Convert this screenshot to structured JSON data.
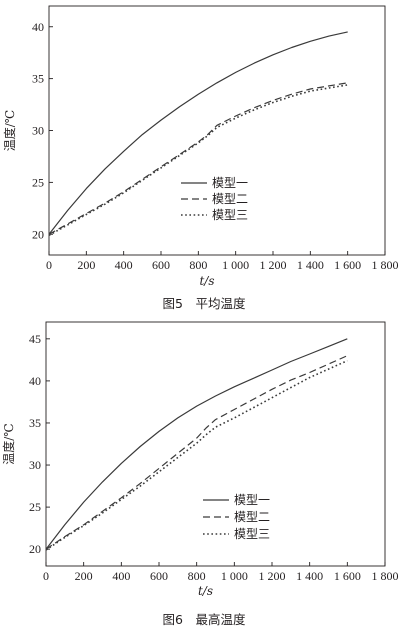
{
  "chart_data": [
    {
      "type": "line",
      "caption": "图5　平均温度",
      "xlabel": "t/s",
      "ylabel": "温度/℃",
      "xlim": [
        0,
        1800
      ],
      "ylim": [
        18,
        42
      ],
      "xticks": [
        0,
        200,
        400,
        600,
        800,
        1000,
        1200,
        1400,
        1600,
        1800
      ],
      "xtick_labels": [
        "0",
        "200",
        "400",
        "600",
        "800",
        "1 000",
        "1 200",
        "1 400",
        "1 600",
        "1 800"
      ],
      "yticks": [
        20,
        25,
        30,
        35,
        40
      ],
      "ytick_labels": [
        "20",
        "25",
        "30",
        "35",
        "40"
      ],
      "grid": false,
      "legend_position": "lower-right",
      "series": [
        {
          "name": "模型一",
          "style": "solid",
          "x": [
            0,
            100,
            200,
            300,
            400,
            500,
            600,
            700,
            800,
            900,
            1000,
            1100,
            1200,
            1300,
            1400,
            1500,
            1600
          ],
          "y": [
            20.0,
            22.3,
            24.4,
            26.3,
            28.0,
            29.6,
            31.0,
            32.3,
            33.5,
            34.6,
            35.6,
            36.5,
            37.3,
            38.0,
            38.6,
            39.1,
            39.5
          ]
        },
        {
          "name": "模型二",
          "style": "dashed",
          "x": [
            0,
            100,
            200,
            300,
            400,
            500,
            600,
            700,
            800,
            850,
            900,
            1000,
            1100,
            1200,
            1300,
            1400,
            1500,
            1600
          ],
          "y": [
            20.0,
            21.0,
            22.0,
            23.0,
            24.1,
            25.3,
            26.5,
            27.7,
            28.9,
            29.6,
            30.5,
            31.4,
            32.2,
            32.9,
            33.5,
            34.0,
            34.3,
            34.6
          ]
        },
        {
          "name": "模型三",
          "style": "dotted",
          "x": [
            0,
            100,
            200,
            300,
            400,
            500,
            600,
            700,
            800,
            850,
            900,
            1000,
            1100,
            1200,
            1300,
            1400,
            1500,
            1600
          ],
          "y": [
            19.9,
            20.9,
            21.9,
            22.9,
            24.0,
            25.2,
            26.4,
            27.6,
            28.8,
            29.5,
            30.3,
            31.2,
            32.0,
            32.7,
            33.3,
            33.8,
            34.1,
            34.4
          ]
        }
      ]
    },
    {
      "type": "line",
      "caption": "图6　最高温度",
      "xlabel": "t/s",
      "ylabel": "温度/℃",
      "xlim": [
        0,
        1800
      ],
      "ylim": [
        18,
        47
      ],
      "xticks": [
        0,
        200,
        400,
        600,
        800,
        1000,
        1200,
        1400,
        1600,
        1800
      ],
      "xtick_labels": [
        "0",
        "200",
        "400",
        "600",
        "800",
        "1 000",
        "1 200",
        "1 400",
        "1 600",
        "1 800"
      ],
      "yticks": [
        20,
        25,
        30,
        35,
        40,
        45
      ],
      "ytick_labels": [
        "20",
        "25",
        "30",
        "35",
        "40",
        "45"
      ],
      "grid": false,
      "legend_position": "lower-right",
      "series": [
        {
          "name": "模型一",
          "style": "solid",
          "x": [
            0,
            100,
            200,
            300,
            400,
            500,
            600,
            700,
            800,
            900,
            1000,
            1100,
            1200,
            1300,
            1400,
            1500,
            1600
          ],
          "y": [
            20.0,
            22.9,
            25.6,
            28.0,
            30.2,
            32.2,
            34.0,
            35.6,
            37.0,
            38.2,
            39.3,
            40.3,
            41.3,
            42.3,
            43.2,
            44.1,
            45.0
          ]
        },
        {
          "name": "模型二",
          "style": "dashed",
          "x": [
            0,
            100,
            200,
            300,
            400,
            500,
            600,
            700,
            800,
            850,
            900,
            1000,
            1100,
            1200,
            1300,
            1400,
            1500,
            1600
          ],
          "y": [
            20.0,
            21.5,
            22.9,
            24.5,
            26.1,
            27.8,
            29.6,
            31.4,
            33.2,
            34.4,
            35.4,
            36.6,
            37.8,
            39.0,
            40.1,
            41.0,
            42.0,
            43.0
          ]
        },
        {
          "name": "模型三",
          "style": "dotted",
          "x": [
            0,
            100,
            200,
            300,
            400,
            500,
            600,
            700,
            800,
            850,
            900,
            1000,
            1100,
            1200,
            1300,
            1400,
            1500,
            1600
          ],
          "y": [
            19.9,
            21.4,
            22.8,
            24.3,
            25.9,
            27.5,
            29.2,
            30.9,
            32.6,
            33.6,
            34.5,
            35.6,
            36.8,
            38.0,
            39.2,
            40.4,
            41.4,
            42.4
          ]
        }
      ]
    }
  ]
}
